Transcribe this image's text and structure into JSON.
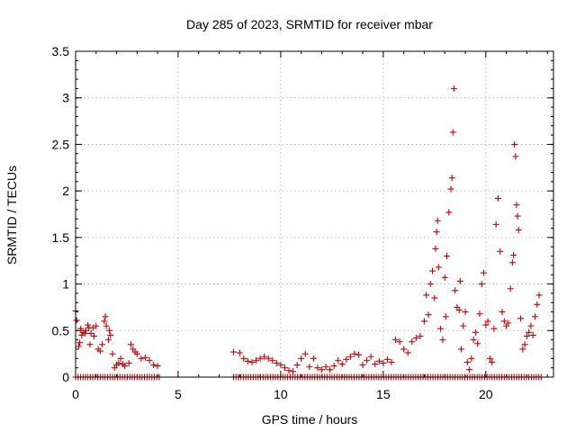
{
  "chart_data": {
    "type": "scatter",
    "title": "Day 285 of 2023, SRMTID for receiver mbar",
    "xlabel": "GPS time / hours",
    "ylabel": "SRMTID / TECUs",
    "xlim": [
      0,
      23.3
    ],
    "ylim": [
      0,
      3.5
    ],
    "xticks": [
      0,
      5,
      10,
      15,
      20
    ],
    "xtick_labels": [
      "0",
      "5",
      "10",
      "15",
      "20"
    ],
    "yticks": [
      0,
      0.5,
      1,
      1.5,
      2,
      2.5,
      3,
      3.5
    ],
    "ytick_labels": [
      "0",
      "0.5",
      "1",
      "1.5",
      "2",
      "2.5",
      "3",
      "3.5"
    ],
    "grid": true,
    "marker": "+",
    "marker_color": "#cc0000",
    "baseline_points": {
      "y": 0,
      "segments": [
        [
          0,
          4.1
        ],
        [
          7.7,
          22.7
        ]
      ],
      "step": 0.12
    },
    "series": [
      {
        "name": "SRMTID",
        "points": [
          [
            0.0,
            0.71
          ],
          [
            0.05,
            0.61
          ],
          [
            0.15,
            0.33
          ],
          [
            0.2,
            0.37
          ],
          [
            0.25,
            0.52
          ],
          [
            0.3,
            0.45
          ],
          [
            0.35,
            0.48
          ],
          [
            0.45,
            0.47
          ],
          [
            0.5,
            0.5
          ],
          [
            0.6,
            0.56
          ],
          [
            0.65,
            0.53
          ],
          [
            0.7,
            0.35
          ],
          [
            0.75,
            0.47
          ],
          [
            0.85,
            0.53
          ],
          [
            0.9,
            0.44
          ],
          [
            1.0,
            0.55
          ],
          [
            1.1,
            0.3
          ],
          [
            1.2,
            0.28
          ],
          [
            1.3,
            0.35
          ],
          [
            1.4,
            0.6
          ],
          [
            1.45,
            0.65
          ],
          [
            1.5,
            0.55
          ],
          [
            1.6,
            0.4
          ],
          [
            1.65,
            0.5
          ],
          [
            1.7,
            0.45
          ],
          [
            1.8,
            0.25
          ],
          [
            1.9,
            0.1
          ],
          [
            2.0,
            0.13
          ],
          [
            2.1,
            0.15
          ],
          [
            2.2,
            0.2
          ],
          [
            2.3,
            0.14
          ],
          [
            2.4,
            0.12
          ],
          [
            2.6,
            0.15
          ],
          [
            2.7,
            0.35
          ],
          [
            2.8,
            0.3
          ],
          [
            2.9,
            0.27
          ],
          [
            3.0,
            0.25
          ],
          [
            3.2,
            0.2
          ],
          [
            3.4,
            0.21
          ],
          [
            3.6,
            0.18
          ],
          [
            3.8,
            0.13
          ],
          [
            4.0,
            0.12
          ],
          [
            7.7,
            0.27
          ],
          [
            8.0,
            0.26
          ],
          [
            8.2,
            0.2
          ],
          [
            8.4,
            0.17
          ],
          [
            8.6,
            0.16
          ],
          [
            8.8,
            0.18
          ],
          [
            9.0,
            0.2
          ],
          [
            9.2,
            0.22
          ],
          [
            9.4,
            0.2
          ],
          [
            9.6,
            0.18
          ],
          [
            9.8,
            0.15
          ],
          [
            10.0,
            0.13
          ],
          [
            10.2,
            0.1
          ],
          [
            10.4,
            0.07
          ],
          [
            10.6,
            0.06
          ],
          [
            10.8,
            0.13
          ],
          [
            11.0,
            0.2
          ],
          [
            11.2,
            0.25
          ],
          [
            11.4,
            0.11
          ],
          [
            11.6,
            0.2
          ],
          [
            11.8,
            0.1
          ],
          [
            12.0,
            0.08
          ],
          [
            12.2,
            0.11
          ],
          [
            12.4,
            0.08
          ],
          [
            12.6,
            0.12
          ],
          [
            12.8,
            0.18
          ],
          [
            13.0,
            0.14
          ],
          [
            13.2,
            0.19
          ],
          [
            13.4,
            0.22
          ],
          [
            13.6,
            0.25
          ],
          [
            13.8,
            0.24
          ],
          [
            14.0,
            0.13
          ],
          [
            14.2,
            0.18
          ],
          [
            14.4,
            0.22
          ],
          [
            14.6,
            0.14
          ],
          [
            14.8,
            0.17
          ],
          [
            15.0,
            0.15
          ],
          [
            15.2,
            0.19
          ],
          [
            15.4,
            0.16
          ],
          [
            15.6,
            0.4
          ],
          [
            15.8,
            0.38
          ],
          [
            16.0,
            0.3
          ],
          [
            16.2,
            0.26
          ],
          [
            16.4,
            0.38
          ],
          [
            16.6,
            0.42
          ],
          [
            16.8,
            0.44
          ],
          [
            17.0,
            0.6
          ],
          [
            17.1,
            0.88
          ],
          [
            17.2,
            0.67
          ],
          [
            17.3,
            1.0
          ],
          [
            17.4,
            1.14
          ],
          [
            17.5,
            0.85
          ],
          [
            17.55,
            1.38
          ],
          [
            17.6,
            1.56
          ],
          [
            17.65,
            1.68
          ],
          [
            17.7,
            1.18
          ],
          [
            17.8,
            0.52
          ],
          [
            17.9,
            0.4
          ],
          [
            18.0,
            1.07
          ],
          [
            18.05,
            0.65
          ],
          [
            18.1,
            1.3
          ],
          [
            18.2,
            1.77
          ],
          [
            18.3,
            2.02
          ],
          [
            18.35,
            2.14
          ],
          [
            18.4,
            2.63
          ],
          [
            18.45,
            3.1
          ],
          [
            18.5,
            0.93
          ],
          [
            18.6,
            0.75
          ],
          [
            18.7,
            0.72
          ],
          [
            18.75,
            1.03
          ],
          [
            18.8,
            0.3
          ],
          [
            18.9,
            0.55
          ],
          [
            19.0,
            0.7
          ],
          [
            19.1,
            0.16
          ],
          [
            19.2,
            0.08
          ],
          [
            19.3,
            0.2
          ],
          [
            19.4,
            0.4
          ],
          [
            19.5,
            0.48
          ],
          [
            19.6,
            0.36
          ],
          [
            19.7,
            0.68
          ],
          [
            19.8,
            1.0
          ],
          [
            19.9,
            1.12
          ],
          [
            20.0,
            0.56
          ],
          [
            20.1,
            0.6
          ],
          [
            20.2,
            0.2
          ],
          [
            20.3,
            0.16
          ],
          [
            20.4,
            0.52
          ],
          [
            20.5,
            1.64
          ],
          [
            20.6,
            1.92
          ],
          [
            20.7,
            1.35
          ],
          [
            20.8,
            0.7
          ],
          [
            20.9,
            0.6
          ],
          [
            21.0,
            0.55
          ],
          [
            21.1,
            0.58
          ],
          [
            21.2,
            0.95
          ],
          [
            21.3,
            1.23
          ],
          [
            21.35,
            1.31
          ],
          [
            21.4,
            2.5
          ],
          [
            21.45,
            2.37
          ],
          [
            21.5,
            1.85
          ],
          [
            21.55,
            1.73
          ],
          [
            21.6,
            1.58
          ],
          [
            21.7,
            0.63
          ],
          [
            21.8,
            0.3
          ],
          [
            21.9,
            0.35
          ],
          [
            22.0,
            0.44
          ],
          [
            22.1,
            0.48
          ],
          [
            22.2,
            0.55
          ],
          [
            22.3,
            0.45
          ],
          [
            22.4,
            0.65
          ],
          [
            22.5,
            0.78
          ],
          [
            22.6,
            0.88
          ]
        ]
      }
    ]
  }
}
